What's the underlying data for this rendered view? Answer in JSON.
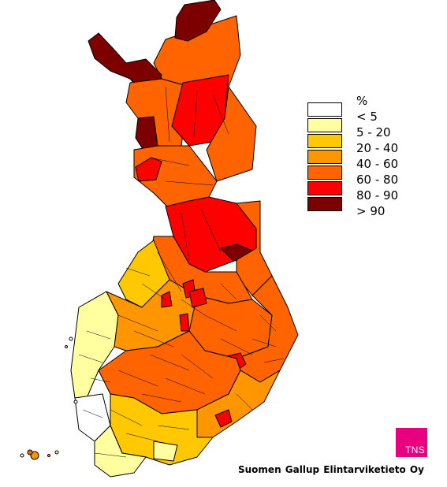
{
  "legend": {
    "unit": "%",
    "items": [
      {
        "label": "< 5",
        "color": "#ffffff"
      },
      {
        "label": "5 - 20",
        "color": "#ffffa0"
      },
      {
        "label": "20 - 40",
        "color": "#ffc800"
      },
      {
        "label": "40 - 60",
        "color": "#ff9600"
      },
      {
        "label": "60 - 80",
        "color": "#ff6400"
      },
      {
        "label": "80 - 90",
        "color": "#ff0000"
      },
      {
        "label": "> 90",
        "color": "#7d0000"
      }
    ]
  },
  "logo_text": "TNS",
  "source_text": "Suomen Gallup Elintarviketieto Oy"
}
